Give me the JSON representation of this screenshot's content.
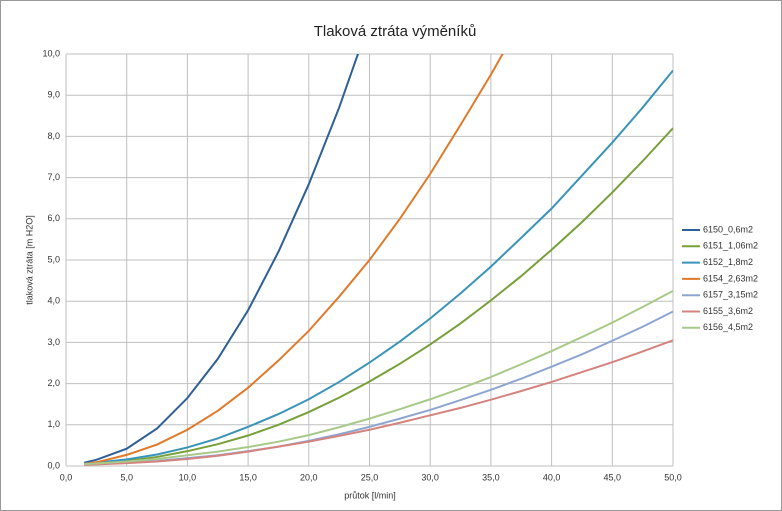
{
  "chart_data": {
    "type": "line",
    "title": "Tlaková ztráta výměníků",
    "x_label": "průtok [l/min]",
    "y_label": "tlaková ztráta [m H2O]",
    "x": [
      1.5,
      2.5,
      5,
      7.5,
      10,
      12.5,
      15,
      17.5,
      20,
      22.5,
      25,
      27.5,
      30,
      32.5,
      35,
      37.5,
      40,
      42.5,
      45,
      47.5,
      50
    ],
    "series": [
      {
        "name": "6150_0,6m2",
        "color": "#2e5f96",
        "values": [
          0.08,
          0.15,
          0.42,
          0.91,
          1.65,
          2.6,
          3.78,
          5.2,
          6.84,
          8.7,
          10.8,
          null,
          null,
          null,
          null,
          null,
          null,
          null,
          null,
          null,
          null
        ]
      },
      {
        "name": "6151_1,06m2",
        "color": "#77a03a",
        "values": [
          0.05,
          0.07,
          0.12,
          0.22,
          0.36,
          0.53,
          0.74,
          1.0,
          1.31,
          1.66,
          2.05,
          2.48,
          2.95,
          3.46,
          4.02,
          4.61,
          5.25,
          5.92,
          6.64,
          7.4,
          8.2
        ]
      },
      {
        "name": "6152_1,8m2",
        "color": "#3a93b8",
        "values": [
          0.06,
          0.08,
          0.16,
          0.28,
          0.45,
          0.67,
          0.95,
          1.26,
          1.62,
          2.04,
          2.51,
          3.02,
          3.58,
          4.19,
          4.84,
          5.54,
          6.25,
          7.05,
          7.85,
          8.7,
          9.6
        ]
      },
      {
        "name": "6154_2,63m2",
        "color": "#e07a2a",
        "values": [
          0.05,
          0.09,
          0.27,
          0.52,
          0.88,
          1.34,
          1.9,
          2.56,
          3.28,
          4.11,
          5.0,
          6.0,
          7.09,
          8.28,
          9.5,
          10.8,
          null,
          null,
          null,
          null,
          null
        ]
      },
      {
        "name": "6157_3,15m2",
        "color": "#8ea6cf",
        "values": [
          0.04,
          0.05,
          0.08,
          0.12,
          0.19,
          0.26,
          0.36,
          0.47,
          0.61,
          0.77,
          0.95,
          1.15,
          1.36,
          1.6,
          1.85,
          2.12,
          2.41,
          2.71,
          3.04,
          3.38,
          3.75
        ]
      },
      {
        "name": "6155_3,6m2",
        "color": "#d4837f",
        "values": [
          0.03,
          0.04,
          0.07,
          0.11,
          0.17,
          0.25,
          0.35,
          0.47,
          0.59,
          0.73,
          0.88,
          1.05,
          1.23,
          1.41,
          1.61,
          1.82,
          2.04,
          2.28,
          2.52,
          2.78,
          3.05
        ]
      },
      {
        "name": "6156_4,5m2",
        "color": "#a8c98a",
        "values": [
          0.05,
          0.06,
          0.11,
          0.17,
          0.26,
          0.35,
          0.46,
          0.59,
          0.75,
          0.94,
          1.15,
          1.38,
          1.62,
          1.88,
          2.16,
          2.47,
          2.79,
          3.13,
          3.48,
          3.86,
          4.25
        ]
      }
    ],
    "xlim": [
      0,
      50
    ],
    "ylim": [
      0,
      10
    ],
    "xticks": [
      {
        "value": 0,
        "label": "0,0"
      },
      {
        "value": 5,
        "label": "5,0"
      },
      {
        "value": 10,
        "label": "10,0"
      },
      {
        "value": 15,
        "label": "15,0"
      },
      {
        "value": 20,
        "label": "20,0"
      },
      {
        "value": 25,
        "label": "25,0"
      },
      {
        "value": 30,
        "label": "30,0"
      },
      {
        "value": 35,
        "label": "35,0"
      },
      {
        "value": 40,
        "label": "40,0"
      },
      {
        "value": 45,
        "label": "45,0"
      },
      {
        "value": 50,
        "label": "50,0"
      }
    ],
    "yticks": [
      {
        "value": 0,
        "label": "0,0"
      },
      {
        "value": 1,
        "label": "1,0"
      },
      {
        "value": 2,
        "label": "2,0"
      },
      {
        "value": 3,
        "label": "3,0"
      },
      {
        "value": 4,
        "label": "4,0"
      },
      {
        "value": 5,
        "label": "5,0"
      },
      {
        "value": 6,
        "label": "6,0"
      },
      {
        "value": 7,
        "label": "7,0"
      },
      {
        "value": 8,
        "label": "8,0"
      },
      {
        "value": 9,
        "label": "9,0"
      },
      {
        "value": 10,
        "label": "10,0"
      }
    ],
    "grid": true,
    "legend": "right"
  }
}
